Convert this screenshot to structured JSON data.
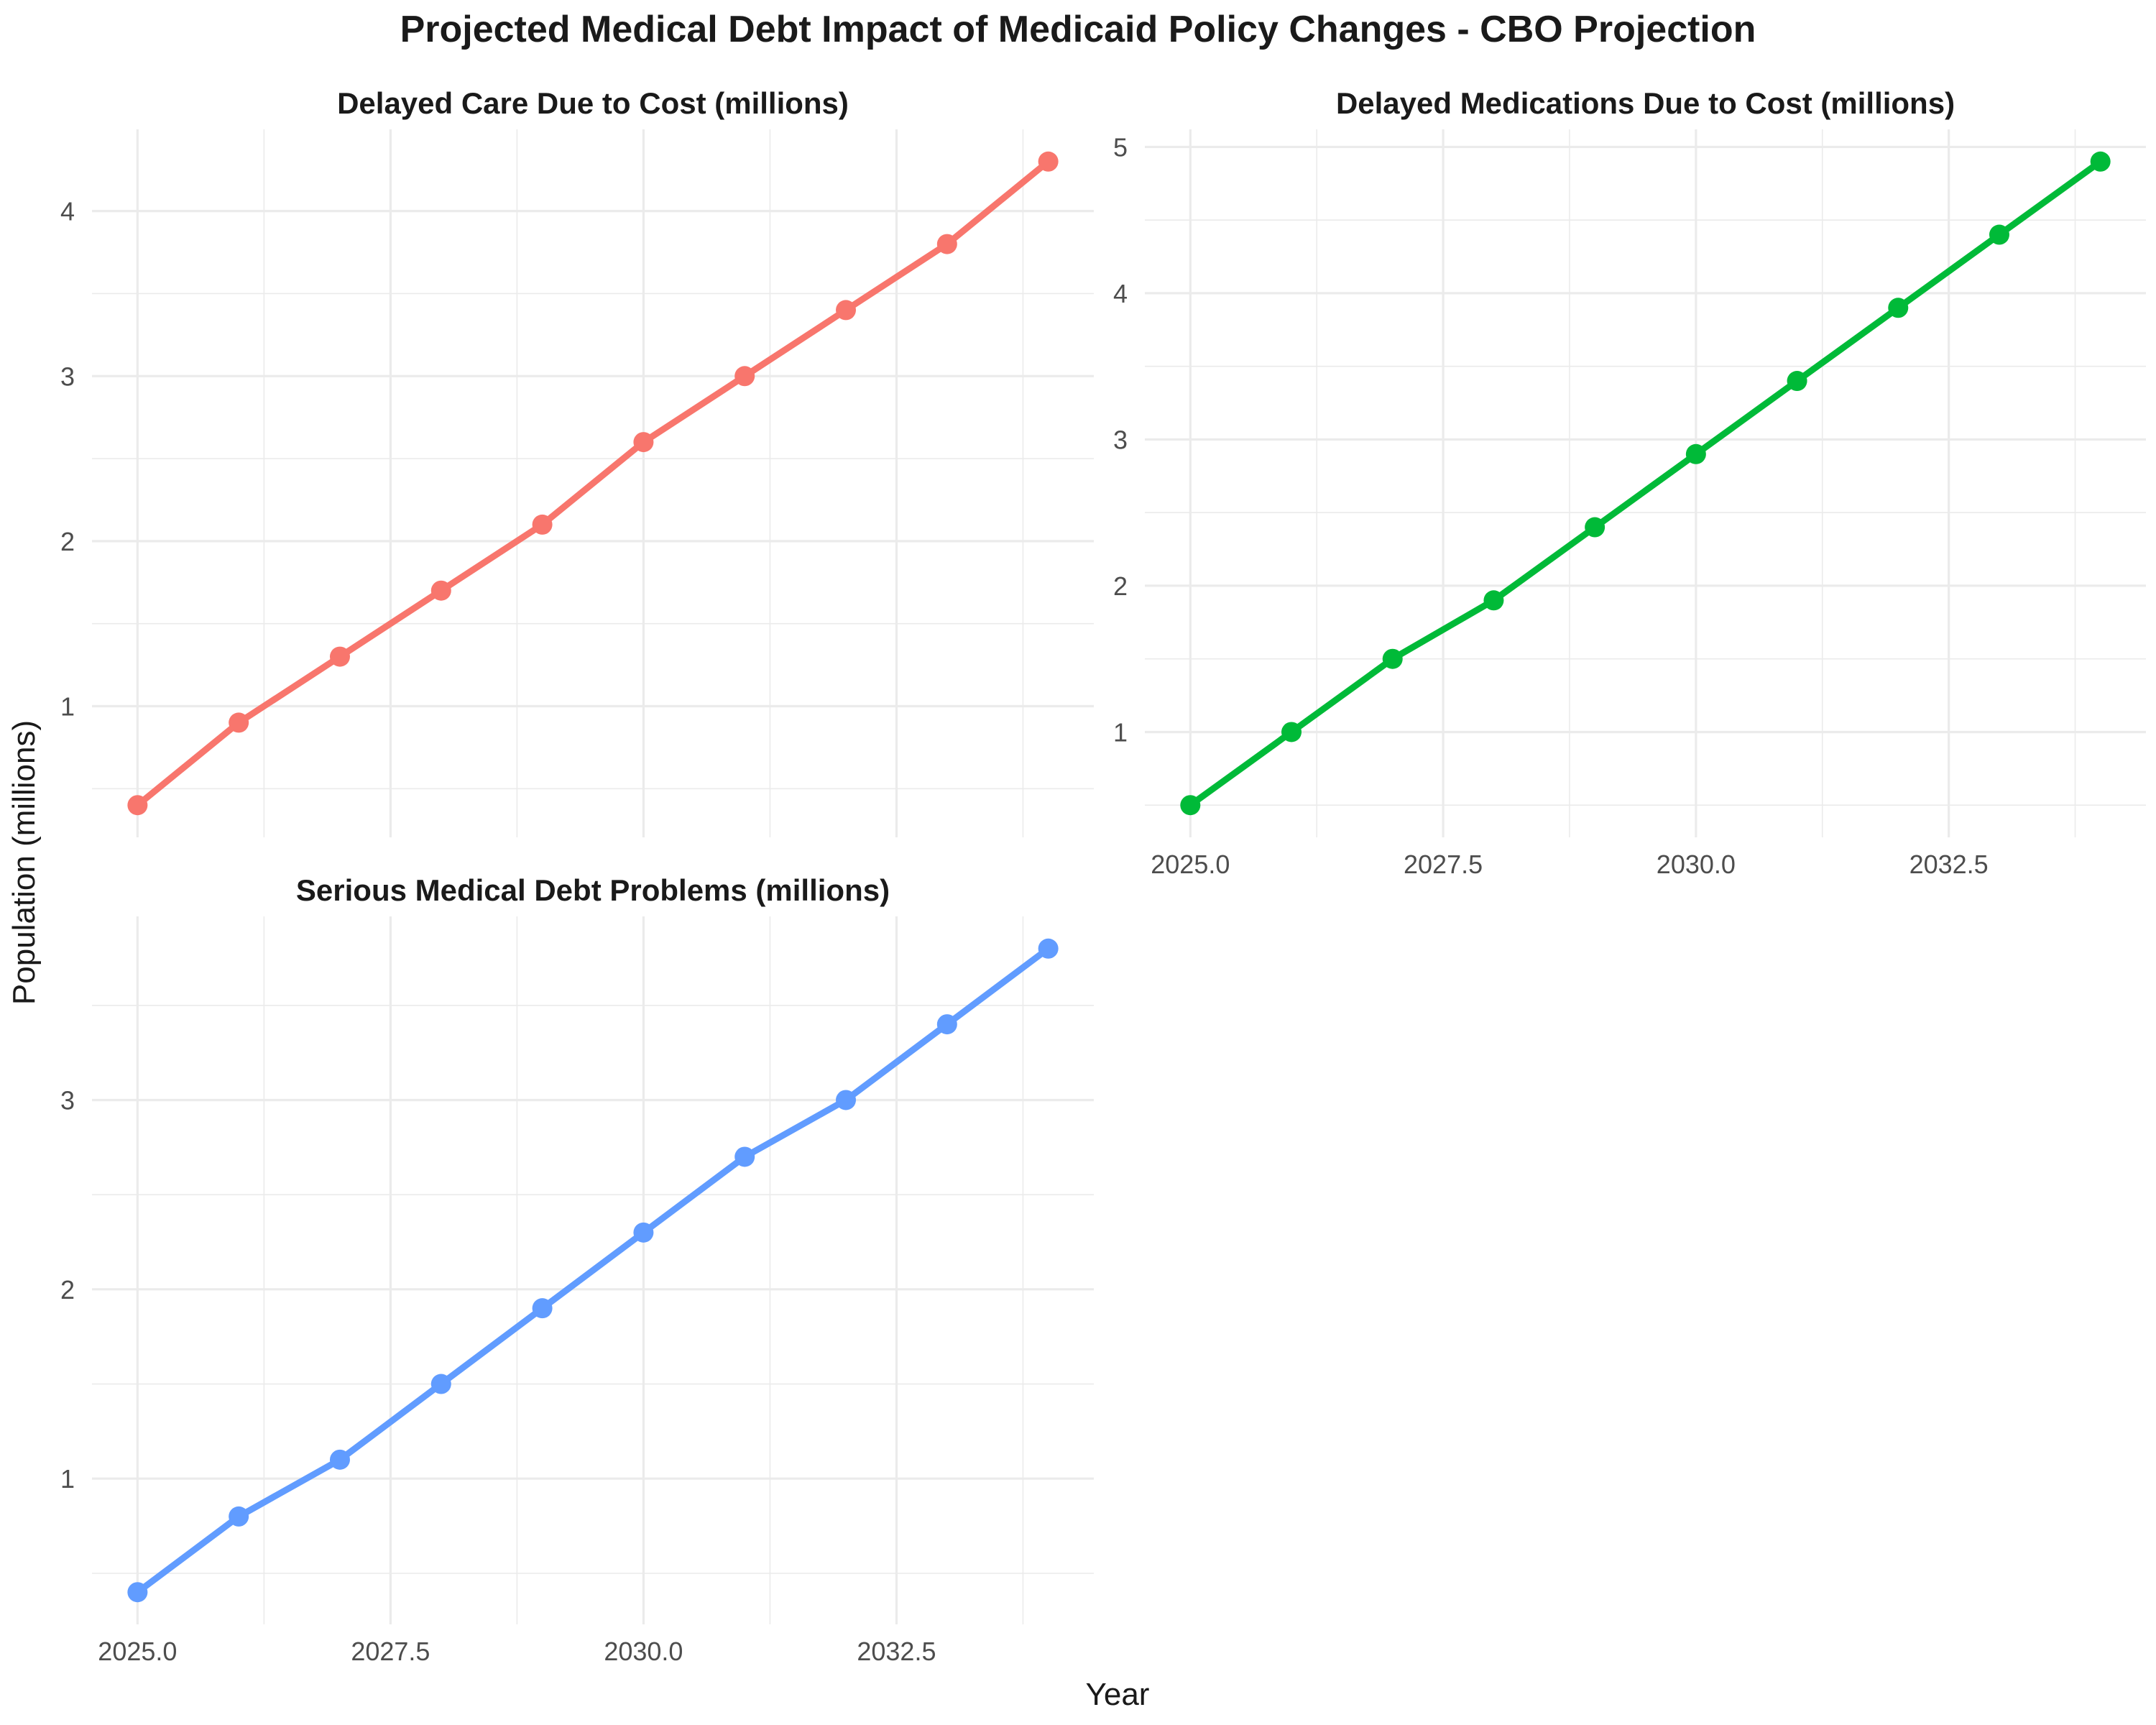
{
  "figure": {
    "title": "Projected Medical Debt Impact of Medicaid Policy Changes - CBO Projection",
    "xlabel": "Year",
    "ylabel": "Population (millions)"
  },
  "chart_data": [
    {
      "type": "line",
      "title": "Delayed Care Due to Cost (millions)",
      "x": [
        2025,
        2026,
        2027,
        2028,
        2029,
        2030,
        2031,
        2032,
        2033,
        2034
      ],
      "values": [
        0.4,
        0.9,
        1.3,
        1.7,
        2.1,
        2.6,
        3.0,
        3.4,
        3.8,
        4.3
      ],
      "color": "#F8766D",
      "xlim": [
        2024.55,
        2034.45
      ],
      "ylim": [
        0.205,
        4.495
      ],
      "xticks": [
        2025.0,
        2027.5,
        2030.0,
        2032.5
      ],
      "xtick_labels": [],
      "yticks": [
        1,
        2,
        3,
        4
      ],
      "ytick_labels": [
        "1",
        "2",
        "3",
        "4"
      ],
      "grid": true
    },
    {
      "type": "line",
      "title": "Delayed Medications Due to Cost (millions)",
      "x": [
        2025,
        2026,
        2027,
        2028,
        2029,
        2030,
        2031,
        2032,
        2033,
        2034
      ],
      "values": [
        0.5,
        1.0,
        1.5,
        1.9,
        2.4,
        2.9,
        3.4,
        3.9,
        4.4,
        4.9
      ],
      "color": "#00BA38",
      "xlim": [
        2024.55,
        2034.45
      ],
      "ylim": [
        0.28,
        5.12
      ],
      "xticks": [
        2025.0,
        2027.5,
        2030.0,
        2032.5
      ],
      "xtick_labels": [
        "2025.0",
        "2027.5",
        "2030.0",
        "2032.5"
      ],
      "yticks": [
        1,
        2,
        3,
        4,
        5
      ],
      "ytick_labels": [
        "1",
        "2",
        "3",
        "4",
        "5"
      ],
      "grid": true
    },
    {
      "type": "line",
      "title": "Serious Medical Debt Problems (millions)",
      "x": [
        2025,
        2026,
        2027,
        2028,
        2029,
        2030,
        2031,
        2032,
        2033,
        2034
      ],
      "values": [
        0.4,
        0.8,
        1.1,
        1.5,
        1.9,
        2.3,
        2.7,
        3.0,
        3.4,
        3.8
      ],
      "color": "#619CFF",
      "xlim": [
        2024.55,
        2034.45
      ],
      "ylim": [
        0.23,
        3.97
      ],
      "xticks": [
        2025.0,
        2027.5,
        2030.0,
        2032.5
      ],
      "xtick_labels": [
        "2025.0",
        "2027.5",
        "2030.0",
        "2032.5"
      ],
      "yticks": [
        1,
        2,
        3
      ],
      "ytick_labels": [
        "1",
        "2",
        "3"
      ],
      "grid": true
    }
  ]
}
